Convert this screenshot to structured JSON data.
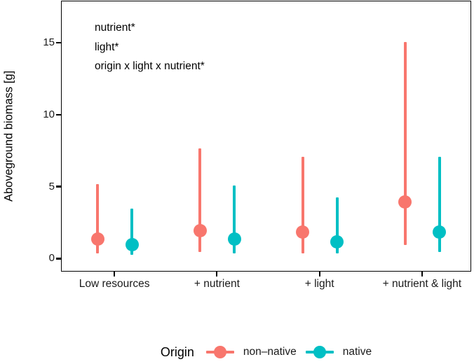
{
  "chart_data": {
    "type": "scatter",
    "subtype": "pointrange-dodged",
    "title": "",
    "xlabel": "",
    "ylabel": "Aboveground biomass [g]",
    "categories": [
      "Low resources",
      "+ nutrient",
      "+ light",
      "+ nutrient & light"
    ],
    "yticks": [
      0,
      5,
      10,
      15
    ],
    "ylim": [
      -0.9,
      17.9
    ],
    "grid": false,
    "annotations": [
      "nutrient*",
      "light*",
      "origin x light x nutrient*"
    ],
    "legend": {
      "title": "Origin",
      "position": "bottom"
    },
    "series": [
      {
        "name": "non–native",
        "color": "#F8766D",
        "means": [
          1.4,
          2.0,
          1.9,
          4.0
        ],
        "lower": [
          0.4,
          0.5,
          0.4,
          1.0
        ],
        "upper": [
          5.2,
          7.7,
          7.1,
          15.1
        ]
      },
      {
        "name": "native",
        "color": "#00BFC4",
        "means": [
          1.0,
          1.4,
          1.2,
          1.9
        ],
        "lower": [
          0.3,
          0.4,
          0.4,
          0.5
        ],
        "upper": [
          3.5,
          5.1,
          4.3,
          7.1
        ]
      }
    ]
  }
}
